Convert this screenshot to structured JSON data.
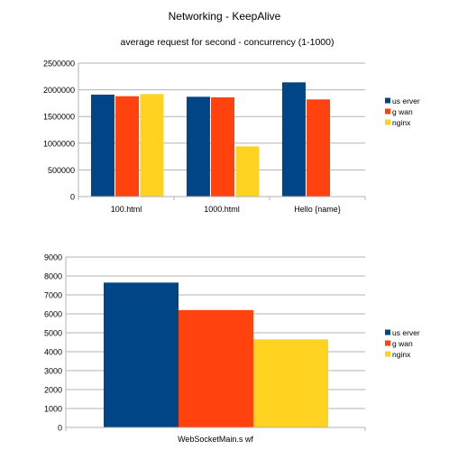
{
  "title": "Networking - KeepAlive",
  "colors": {
    "userver": "#004586",
    "gwan": "#ff420e",
    "nginx": "#ffd320",
    "grid": "#b3b3b3"
  },
  "chart_data": [
    {
      "type": "bar",
      "subtitle": "average request for second - concurrency (1-1000)",
      "categories": [
        "100.html",
        "1000.html",
        "Hello {name}"
      ],
      "series": [
        {
          "name": "us erver",
          "values": [
            1910000,
            1870000,
            2140000
          ]
        },
        {
          "name": "g wan",
          "values": [
            1880000,
            1860000,
            1820000
          ]
        },
        {
          "name": "nginx",
          "values": [
            1920000,
            940000,
            null
          ]
        }
      ],
      "yticks": [
        "0",
        "500000",
        "1000000",
        "1500000",
        "2000000",
        "2500000"
      ],
      "ylim": [
        0,
        2500000
      ],
      "grid": true,
      "legend_position": "right"
    },
    {
      "type": "bar",
      "categories": [
        "WebSocketMain.s wf"
      ],
      "series": [
        {
          "name": "us erver",
          "values": [
            7650
          ]
        },
        {
          "name": "g wan",
          "values": [
            6200
          ]
        },
        {
          "name": "nginx",
          "values": [
            4650
          ]
        }
      ],
      "yticks": [
        "0",
        "1000",
        "2000",
        "3000",
        "4000",
        "5000",
        "6000",
        "7000",
        "8000",
        "9000"
      ],
      "ylim": [
        0,
        9000
      ],
      "grid": true,
      "legend_position": "right"
    }
  ]
}
